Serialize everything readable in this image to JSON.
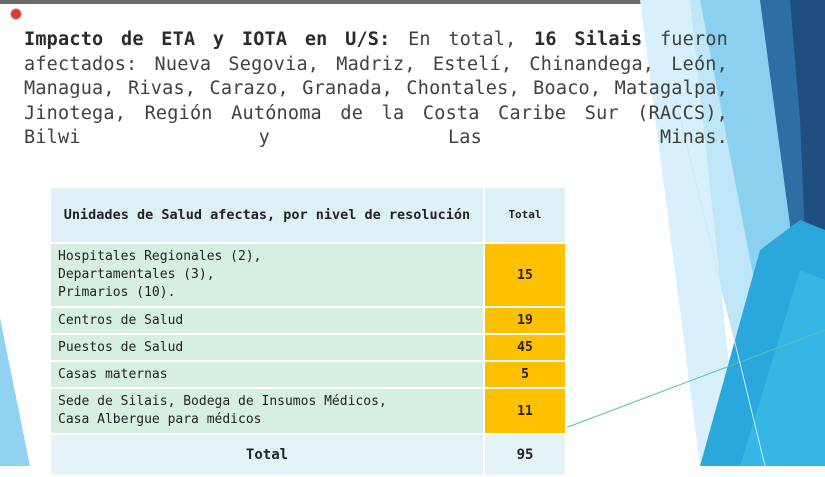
{
  "intro": {
    "bold_heading": "Impacto de ETA y IOTA en U/S:",
    "text_a": " En total, ",
    "bold_count": "16 Silais",
    "text_b": " fueron afectados: Nueva Segovia, Madriz, Estelí, Chinandega, León, Managua, Rivas, Carazo, Granada, Chontales, Boaco, Matagalpa, Jinotega, Región Autónoma de la Costa Caribe Sur (RACCS), Bilwi y Las Minas."
  },
  "table": {
    "header_label": "Unidades de Salud afectas, por nivel de resolución",
    "header_total": "Total",
    "rows": [
      {
        "lines": [
          "Hospitales Regionales (2),",
          "Departamentales (3),",
          "Primarios (10)."
        ],
        "total": "15"
      },
      {
        "lines": [
          "Centros de Salud"
        ],
        "total": "19"
      },
      {
        "lines": [
          "Puestos de Salud"
        ],
        "total": "45"
      },
      {
        "lines": [
          "Casas maternas"
        ],
        "total": "5"
      },
      {
        "lines": [
          "Sede de Silais, Bodega de Insumos Médicos,",
          "Casa Albergue para médicos"
        ],
        "total": "11"
      }
    ],
    "footer_label": "Total",
    "footer_total": "95"
  },
  "colors": {
    "header_bg": "#ddf0f6",
    "row_bg": "#d6efe0",
    "value_bg": "#ffc000",
    "footer_bg": "#e3f3f8",
    "deco_dark": "#2c6aa0",
    "deco_light": "#9fd8f2"
  },
  "icons": {
    "recording": "record-icon"
  }
}
